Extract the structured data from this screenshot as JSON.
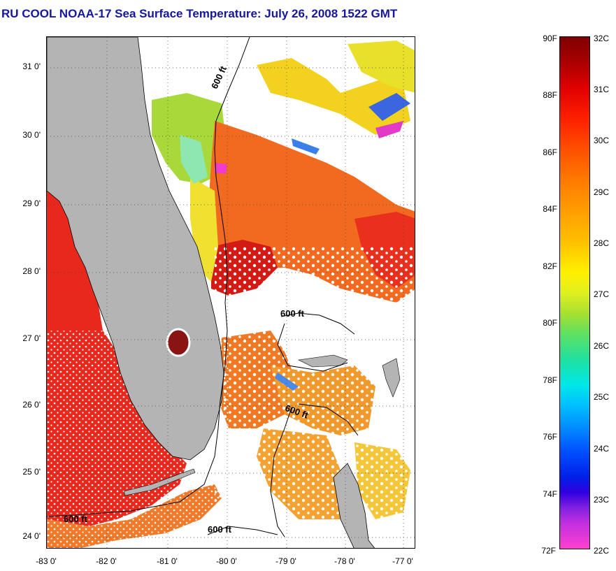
{
  "title": "RU COOL  NOAA-17  Sea Surface Temperature:  July 26, 2008 1522 GMT",
  "map": {
    "latitude_labels": [
      "31 0'",
      "30 0'",
      "29 0'",
      "28 0'",
      "27 0'",
      "26 0'",
      "25 0'",
      "24 0'"
    ],
    "longitude_labels": [
      "-83 0'",
      "-82 0'",
      "-81 0'",
      "-80 0'",
      "-79 0'",
      "-78 0'",
      "-77 0'"
    ],
    "contour_labels": [
      "600 ft",
      "600 ft",
      "600 ft",
      "600 ft",
      "600 ft"
    ],
    "land_color": "#b4b4b4",
    "cloud_color": "#ffffff"
  },
  "colorbar": {
    "fahrenheit_labels": [
      "90F",
      "88F",
      "86F",
      "84F",
      "82F",
      "80F",
      "78F",
      "76F",
      "74F",
      "72F"
    ],
    "celsius_labels": [
      "32C",
      "31C",
      "30C",
      "29C",
      "28C",
      "27C",
      "26C",
      "25C",
      "24C",
      "23C",
      "22C"
    ],
    "range_celsius": [
      22,
      32
    ]
  }
}
